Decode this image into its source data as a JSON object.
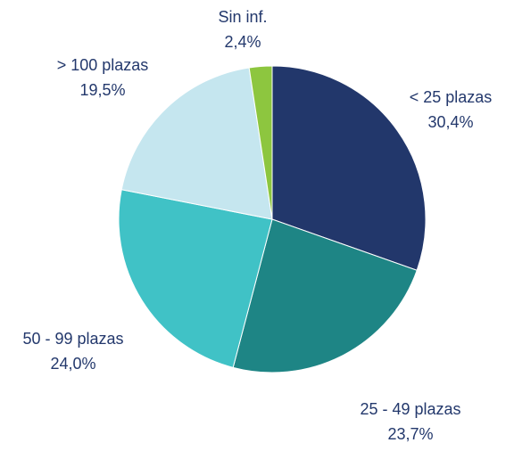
{
  "chart_data": {
    "type": "pie",
    "categories": [
      "< 25 plazas",
      "25 - 49 plazas",
      "50 - 99 plazas",
      "> 100 plazas",
      "Sin inf."
    ],
    "values": [
      30.4,
      23.7,
      24.0,
      19.5,
      2.4
    ],
    "value_labels": [
      "30,4%",
      "23,7%",
      "24,0%",
      "19,5%",
      "2,4%"
    ],
    "colors": [
      "#22376b",
      "#1e8585",
      "#40c2c6",
      "#c5e6ef",
      "#8dc63f"
    ]
  }
}
